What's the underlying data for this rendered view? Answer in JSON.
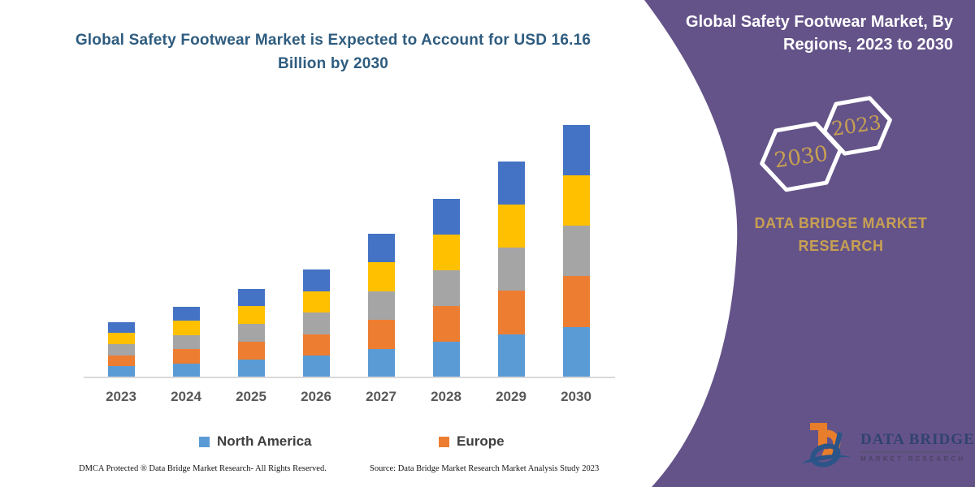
{
  "page": {
    "background": "#FFFFFF"
  },
  "header": {
    "title": "Global Safety Footwear Market is Expected to Account for USD 16.16 Billion by 2030",
    "title_color": "#2E5C7F"
  },
  "chart_data": {
    "type": "bar",
    "stacked": true,
    "title": "Global Safety Footwear Market is Expected to Account for USD 16.16 Billion by 2030",
    "unit": "USD Billion",
    "categories": [
      "2023",
      "2024",
      "2025",
      "2026",
      "2027",
      "2028",
      "2029",
      "2030"
    ],
    "series": [
      {
        "name": "North America",
        "color": "#5B9BD5",
        "in_legend": true,
        "values": [
          0.71,
          0.91,
          1.14,
          1.38,
          1.84,
          2.29,
          2.77,
          3.24
        ]
      },
      {
        "name": "Europe",
        "color": "#ED7D31",
        "in_legend": true,
        "values": [
          0.71,
          0.91,
          1.14,
          1.38,
          1.84,
          2.29,
          2.77,
          3.23
        ]
      },
      {
        "name": "",
        "color": "#A5A5A5",
        "in_legend": false,
        "values": [
          0.71,
          0.91,
          1.14,
          1.38,
          1.84,
          2.29,
          2.77,
          3.23
        ]
      },
      {
        "name": "",
        "color": "#FFC000",
        "in_legend": false,
        "values": [
          0.71,
          0.91,
          1.14,
          1.38,
          1.84,
          2.29,
          2.77,
          3.23
        ]
      },
      {
        "name": "",
        "color": "#4472C4",
        "in_legend": false,
        "values": [
          0.71,
          0.91,
          1.14,
          1.38,
          1.84,
          2.29,
          2.77,
          3.23
        ]
      }
    ],
    "totals": [
      3.55,
      4.55,
      5.7,
      6.9,
      9.2,
      11.45,
      13.85,
      16.16
    ],
    "xlabel": "",
    "ylabel": "",
    "ylim": [
      0,
      16.16
    ],
    "y_axis_visible": false,
    "gridlines": false,
    "baseline_color": "#D9D9D9",
    "x_tick_color": "#595959",
    "legend_position": "bottom"
  },
  "legend": [
    {
      "label": "North America",
      "color": "#5B9BD5"
    },
    {
      "label": "Europe",
      "color": "#ED7D31"
    }
  ],
  "footer": {
    "dmca": "DMCA Protected ® Data Bridge Market Research-  All Rights Reserved.",
    "source": "Source: Data Bridge Market Research  Market Analysis Study 2023"
  },
  "right_panel": {
    "background": "#645389",
    "title": "Global Safety Footwear Market, By Regions, 2023 to 2030",
    "title_color": "#FFFFFF",
    "accent_color": "#C8A052",
    "hexagons": [
      {
        "label": "2030"
      },
      {
        "label": "2023"
      }
    ],
    "brand_text": "DATA BRIDGE MARKET RESEARCH",
    "logo": {
      "name": "DATA BRIDGE",
      "tagline": "MARKET RESEARCH"
    }
  }
}
